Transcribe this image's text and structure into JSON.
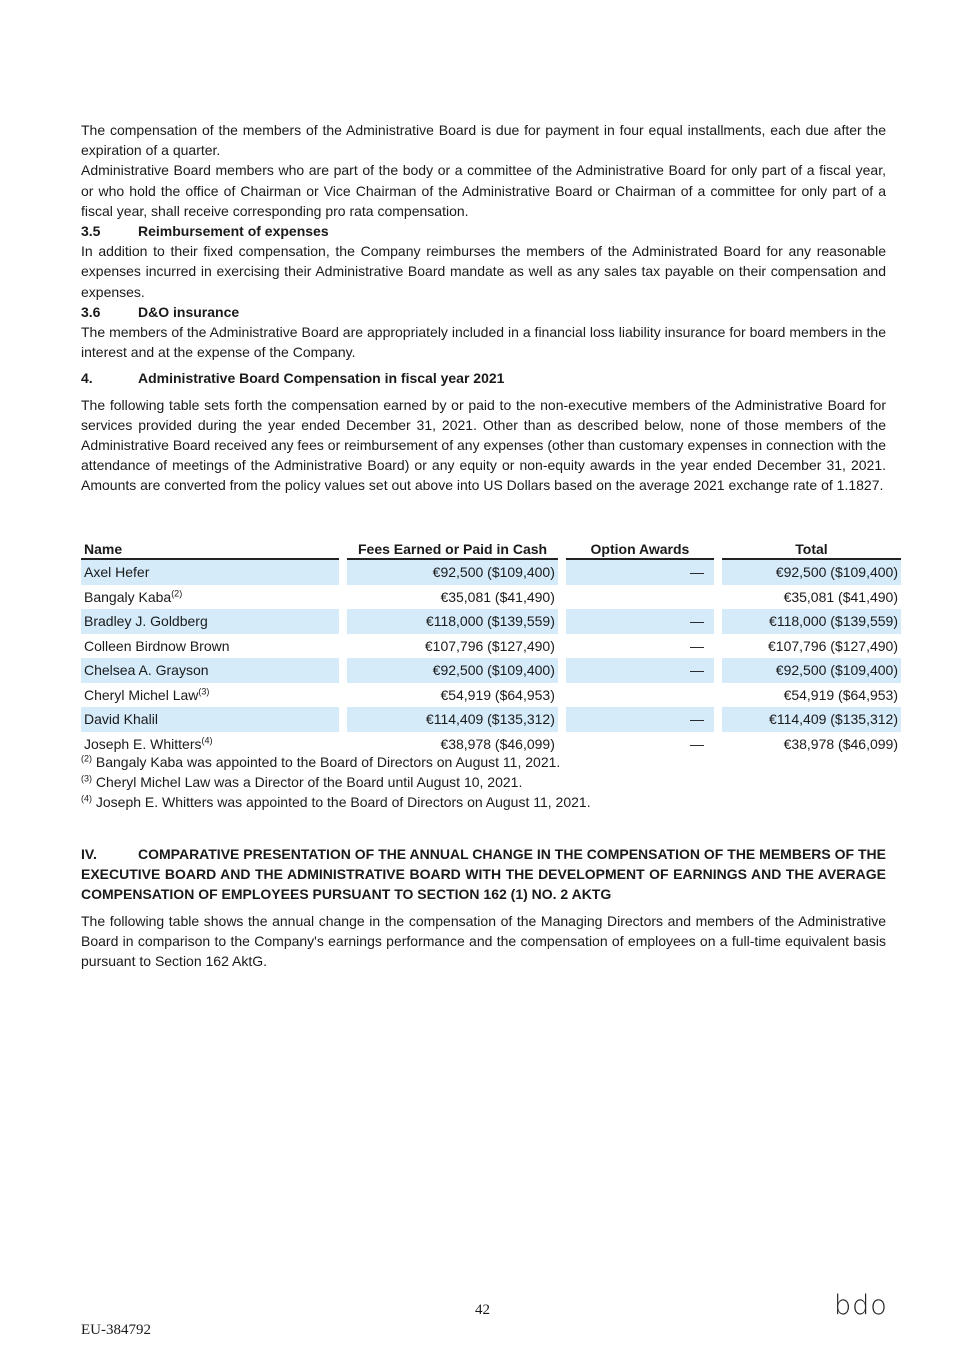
{
  "paragraphs": {
    "p1": "The compensation of the members of the Administrative Board is due for payment in four equal installments, each due after the expiration of a quarter.",
    "p2": "Administrative Board members who are part of the body or a committee of the Administrative Board for only part of a fiscal year, or who hold the office of Chairman or Vice Chairman of the Administrative Board or Chairman of a committee for only part of a fiscal year, shall receive corresponding pro rata compensation.",
    "h35_num": "3.5",
    "h35_title": "Reimbursement of expenses",
    "p3": "In addition to their fixed compensation, the Company reimburses the members of the Administrated Board for any reasonable expenses incurred in exercising their Administrative Board mandate as well as any sales tax payable on their compensation and expenses.",
    "h36_num": "3.6",
    "h36_title": "D&O insurance",
    "p4": "The members of the Administrative Board are appropriately included in a financial loss liability insurance for board members in the interest and at the expense of the Company.",
    "h4_num": "4.",
    "h4_title": "Administrative Board Compensation in fiscal year 2021",
    "p5": "The following table sets forth the compensation earned by or paid to the non-executive members of the Administrative Board for services provided during the year ended December 31, 2021. Other than as described below, none of those members of the Administrative Board received any fees or reimbursement of any expenses (other than customary expenses in connection with the attendance of meetings of the Administrative Board) or any equity or non-equity awards in the year ended December 31, 2021. Amounts are converted from the policy values set out above into US Dollars based on the average 2021 exchange rate of 1.1827."
  },
  "table": {
    "headers": [
      "Name",
      "Fees Earned or Paid in Cash",
      "Option Awards",
      "Total"
    ],
    "rows": [
      {
        "name": "Axel Hefer",
        "note": "",
        "fees": "€92,500 ($109,400)",
        "option": "—",
        "total": "€92,500 ($109,400)"
      },
      {
        "name": "Bangaly Kaba",
        "note": "(2)",
        "fees": "€35,081 ($41,490)",
        "option": "",
        "total": "€35,081 ($41,490)"
      },
      {
        "name": "Bradley J. Goldberg",
        "note": "",
        "fees": "€118,000 ($139,559)",
        "option": "—",
        "total": "€118,000 ($139,559)"
      },
      {
        "name": "Colleen Birdnow Brown",
        "note": "",
        "fees": "€107,796 ($127,490)",
        "option": "—",
        "total": "€107,796 ($127,490)"
      },
      {
        "name": "Chelsea A. Grayson",
        "note": "",
        "fees": "€92,500 ($109,400)",
        "option": "—",
        "total": "€92,500 ($109,400)"
      },
      {
        "name": "Cheryl Michel Law",
        "note": "(3)",
        "fees": "€54,919 ($64,953)",
        "option": "",
        "total": "€54,919 ($64,953)"
      },
      {
        "name": "David Khalil",
        "note": "",
        "fees": "€114,409 ($135,312)",
        "option": "—",
        "total": "€114,409 ($135,312)"
      },
      {
        "name": "Joseph E. Whitters",
        "note": "(4)",
        "fees": "€38,978 ($46,099)",
        "option": "—",
        "total": "€38,978 ($46,099)"
      }
    ],
    "row_highlight_color": "#d5ebfa"
  },
  "footnotes": [
    {
      "mark": "(2)",
      "text": " Bangaly Kaba was appointed to the Board of Directors on August 11, 2021."
    },
    {
      "mark": "(3)",
      "text": " Cheryl Michel Law was a Director of the Board until August 10, 2021."
    },
    {
      "mark": "(4)",
      "text": " Joseph E. Whitters was appointed to the Board of Directors on August 11, 2021."
    }
  ],
  "section4": {
    "num": "IV.",
    "title": "COMPARATIVE PRESENTATION OF THE ANNUAL CHANGE IN THE COMPENSATION OF THE MEMBERS OF THE EXECUTIVE BOARD AND THE ADMINISTRATIVE BOARD WITH THE DEVELOPMENT OF EARNINGS AND THE AVERAGE COMPENSATION OF EMPLOYEES PURSUANT TO SECTION 162 (1) NO. 2 AKTG",
    "body": "The following table shows the annual change in the compensation of the Managing Directors and members of the Administrative Board in comparison to the Company's earnings performance and the compensation of employees on a full-time equivalent basis pursuant to Section 162 AktG."
  },
  "footer": {
    "page_number": "42",
    "doc_id": "EU-384792",
    "logo": "bdo"
  }
}
